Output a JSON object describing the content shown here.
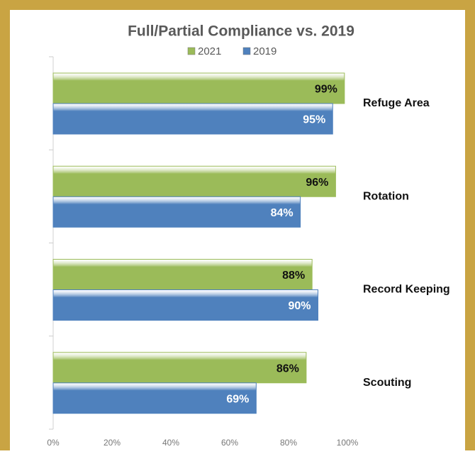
{
  "chart_data": {
    "type": "bar",
    "orientation": "horizontal",
    "title": "Full/Partial Compliance vs. 2019",
    "categories": [
      "Refuge Area",
      "Rotation",
      "Record Keeping",
      "Scouting"
    ],
    "series": [
      {
        "name": "2021",
        "color": "#9bbb59",
        "values": [
          99,
          96,
          88,
          86
        ],
        "value_labels": [
          "99%",
          "96%",
          "88%",
          "86%"
        ]
      },
      {
        "name": "2019",
        "color": "#4f81bd",
        "values": [
          95,
          84,
          90,
          69
        ],
        "value_labels": [
          "95%",
          "84%",
          "90%",
          "69%"
        ]
      }
    ],
    "xlim": [
      0,
      100
    ],
    "xticks": [
      {
        "value": 0,
        "label": "0%"
      },
      {
        "value": 20,
        "label": "20%"
      },
      {
        "value": 40,
        "label": "40%"
      },
      {
        "value": 60,
        "label": "60%"
      },
      {
        "value": 80,
        "label": "80%"
      },
      {
        "value": 100,
        "label": "100%"
      }
    ],
    "legend": "top"
  }
}
